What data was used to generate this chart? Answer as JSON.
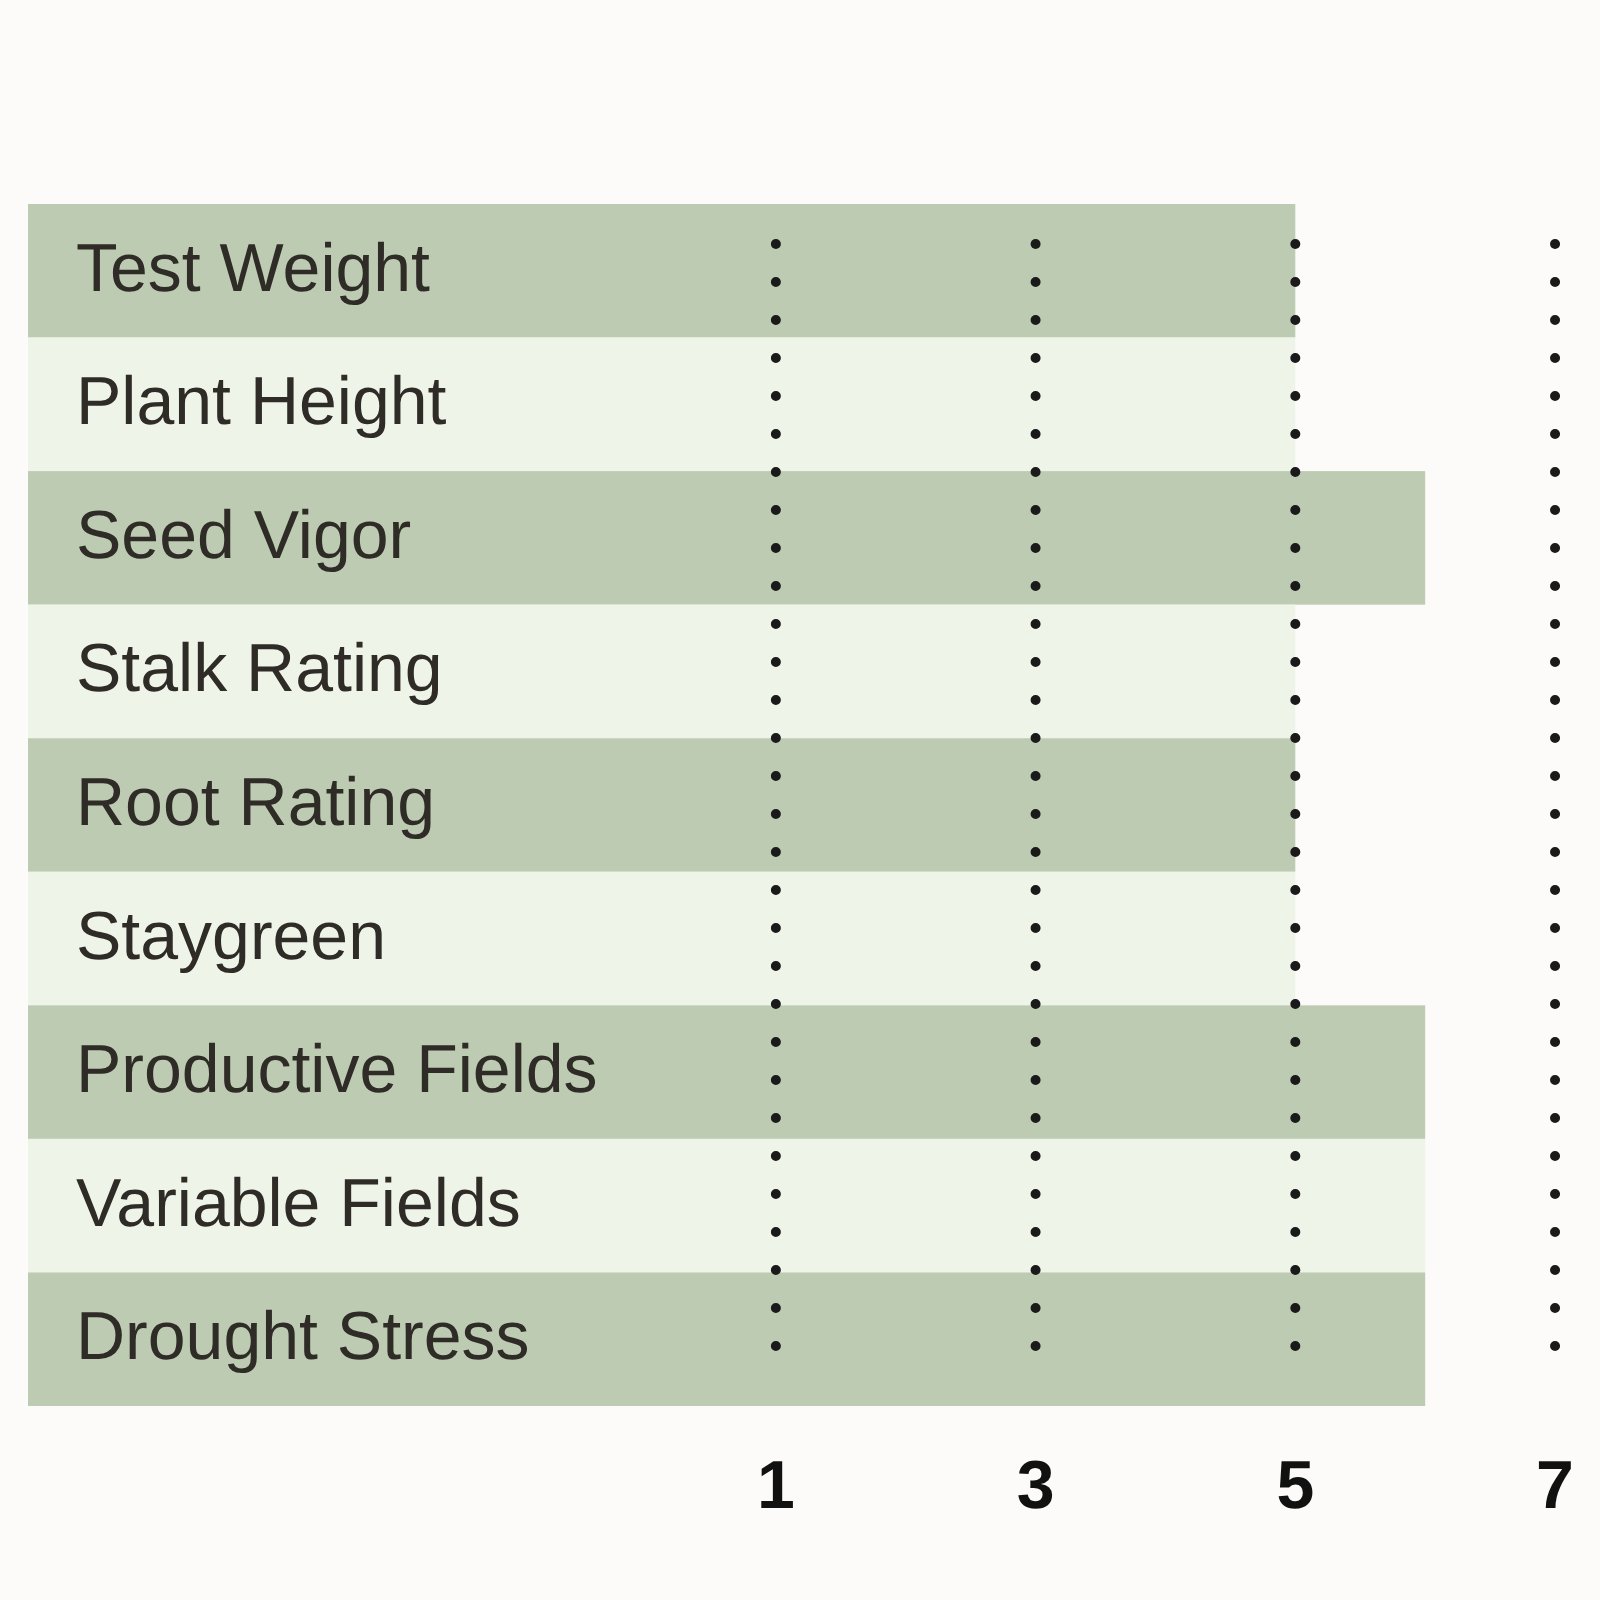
{
  "chart_data": {
    "type": "bar",
    "orientation": "horizontal",
    "categories": [
      "Test Weight",
      "Plant Height",
      "Seed Vigor",
      "Stalk Rating",
      "Root Rating",
      "Staygreen",
      "Productive Fields",
      "Variable Fields",
      "Drought Stress"
    ],
    "values": [
      5,
      5,
      6,
      5,
      5,
      5,
      6,
      6,
      6
    ],
    "colors": [
      "#bccbb1",
      "#eef5e8",
      "#bccbb1",
      "#eef5e8",
      "#bccbb1",
      "#eef5e8",
      "#bccbb1",
      "#eef5e8",
      "#bccbb1"
    ],
    "xlim": [
      0,
      7.3
    ],
    "xticks": [
      1,
      3,
      5,
      7
    ],
    "grid": "x"
  }
}
